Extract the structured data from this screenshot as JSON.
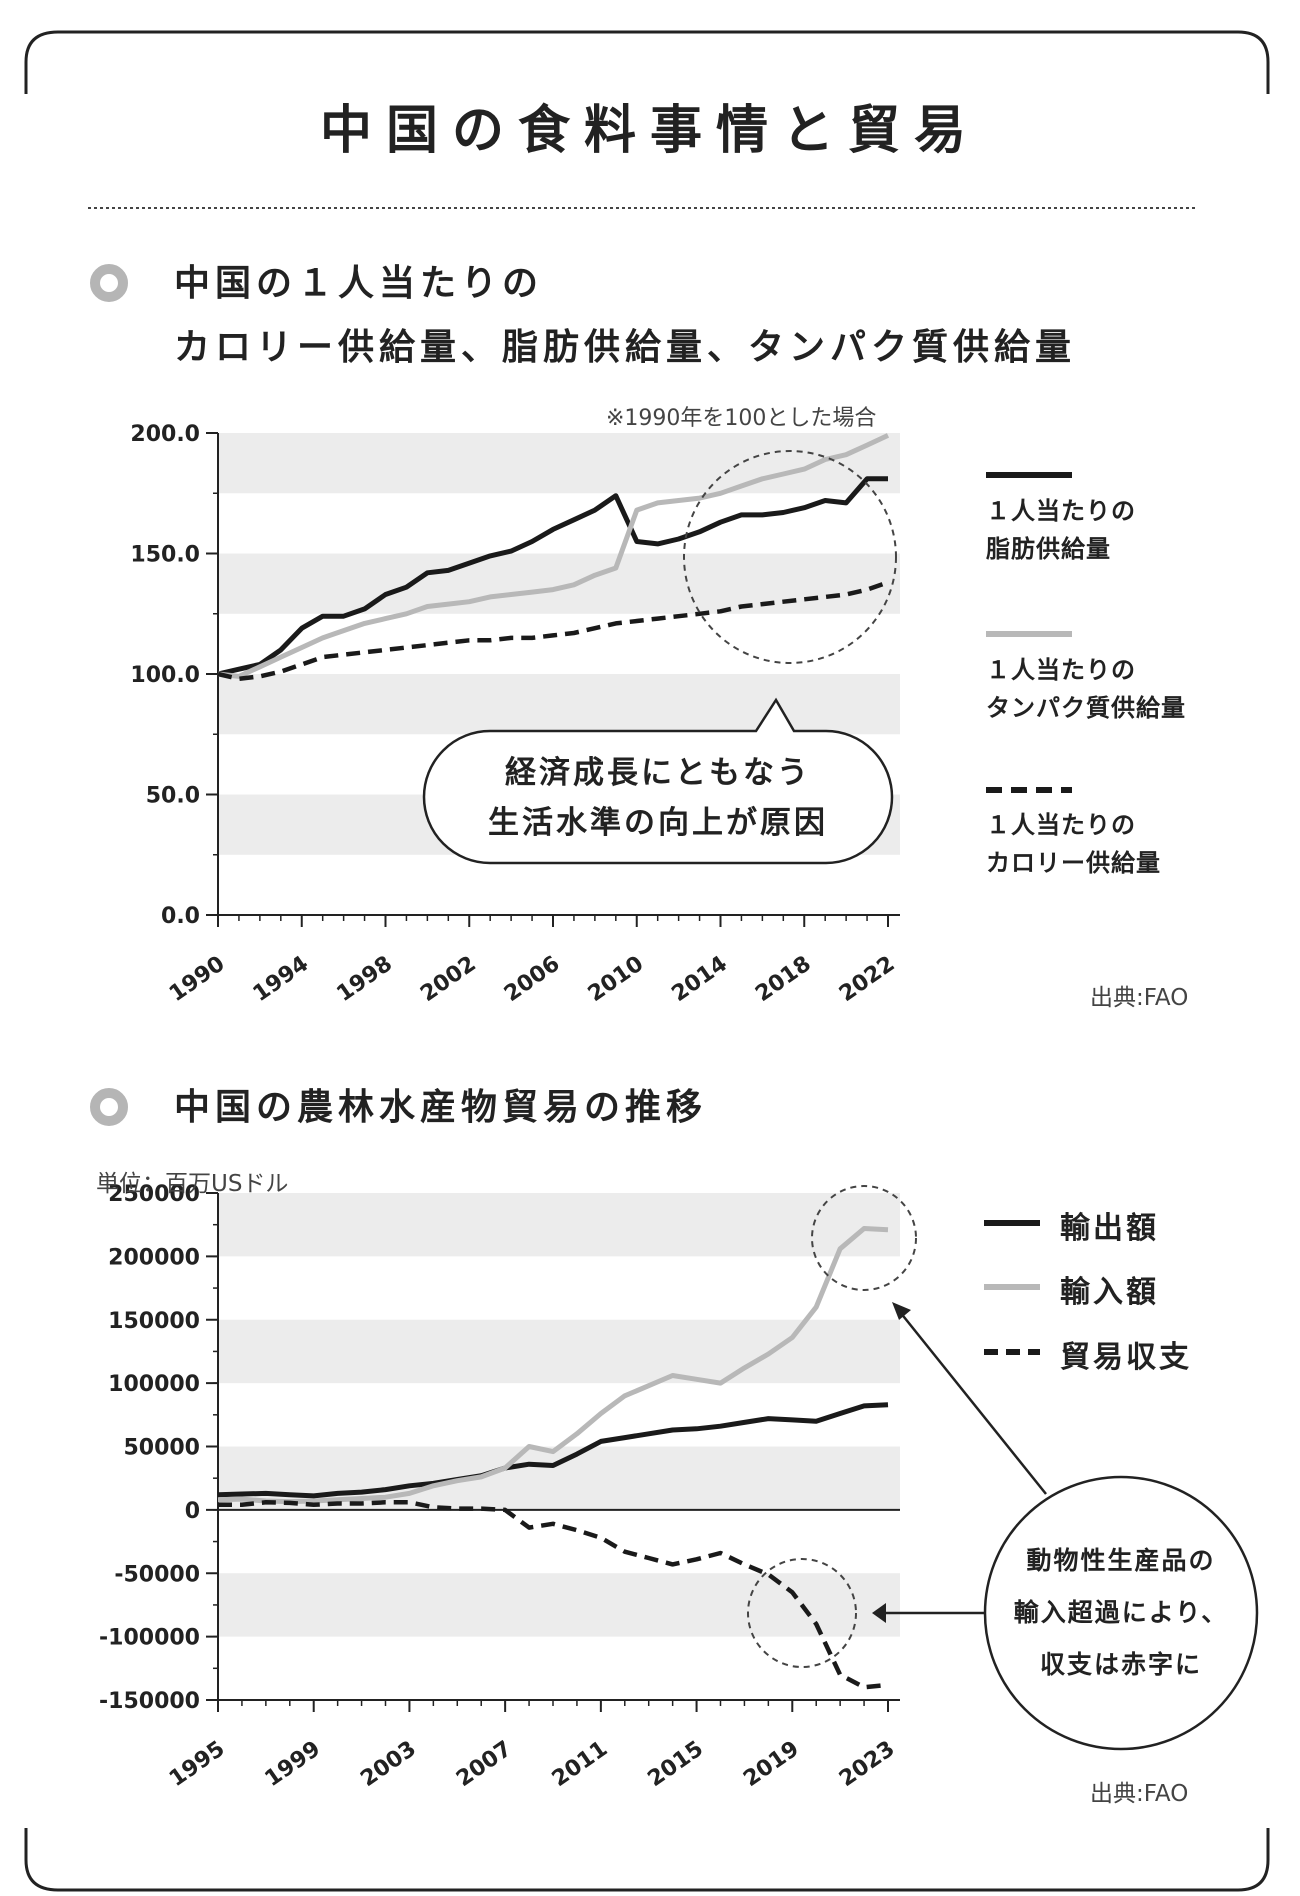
{
  "page": {
    "title": "中国の食料事情と貿易"
  },
  "section1": {
    "title_line1": "中国の１人当たりの",
    "title_line2": "カロリー供給量、脂肪供給量、タンパク質供給量",
    "note": "※1990年を100とした場合",
    "source": "出典:FAO",
    "callout_line1": "経済成長にともなう",
    "callout_line2": "生活水準の向上が原因",
    "legend": [
      {
        "line1": "１人当たりの",
        "line2": "脂肪供給量",
        "style": "solid-black"
      },
      {
        "line1": "１人当たりの",
        "line2": "タンパク質供給量",
        "style": "solid-gray"
      },
      {
        "line1": "１人当たりの",
        "line2": "カロリー供給量",
        "style": "dashed-black"
      }
    ]
  },
  "section2": {
    "title": "中国の農林水産物貿易の推移",
    "unit": "単位：百万USドル",
    "source": "出典:FAO",
    "legend": [
      {
        "label": "輸出額",
        "style": "solid-black"
      },
      {
        "label": "輸入額",
        "style": "solid-gray"
      },
      {
        "label": "貿易収支",
        "style": "dashed-black"
      }
    ],
    "circle_line1": "動物性生産品の",
    "circle_line2": "輸入超過により、",
    "circle_line3": "収支は赤字に"
  },
  "colors": {
    "black_line": "#1a1a1a",
    "gray_line": "#b8b8b8",
    "band": "#ececec",
    "text": "#222222"
  },
  "chart_data": [
    {
      "type": "line",
      "title": "中国の１人当たりのカロリー供給量、脂肪供給量、タンパク質供給量",
      "xlabel": "",
      "ylabel": "",
      "x": [
        1990,
        1991,
        1992,
        1993,
        1994,
        1995,
        1996,
        1997,
        1998,
        1999,
        2000,
        2001,
        2002,
        2003,
        2004,
        2005,
        2006,
        2007,
        2008,
        2009,
        2010,
        2011,
        2012,
        2013,
        2014,
        2015,
        2016,
        2017,
        2018,
        2019,
        2020,
        2021,
        2022
      ],
      "x_ticks": [
        "1990",
        "1994",
        "1998",
        "2002",
        "2006",
        "2010",
        "2014",
        "2018",
        "2022"
      ],
      "y_ticks": [
        "0.0",
        "50.0",
        "100.0",
        "150.0",
        "200.0"
      ],
      "ylim": [
        0,
        200
      ],
      "grid": "alternating horizontal bands",
      "series": [
        {
          "name": "１人当たりの脂肪供給量",
          "style": "solid-black",
          "values": [
            100,
            102,
            104,
            110,
            119,
            124,
            124,
            127,
            133,
            136,
            142,
            143,
            146,
            149,
            151,
            155,
            160,
            164,
            168,
            174,
            155,
            154,
            156,
            159,
            163,
            166,
            166,
            167,
            169,
            172,
            171,
            181,
            181
          ]
        },
        {
          "name": "１人当たりのタンパク質供給量",
          "style": "solid-gray",
          "values": [
            100,
            99,
            103,
            107,
            111,
            115,
            118,
            121,
            123,
            125,
            128,
            129,
            130,
            132,
            133,
            134,
            135,
            137,
            141,
            144,
            168,
            171,
            172,
            173,
            175,
            178,
            181,
            183,
            185,
            189,
            191,
            195,
            199
          ]
        },
        {
          "name": "１人当たりのカロリー供給量",
          "style": "dashed-black",
          "values": [
            100,
            98,
            99,
            101,
            104,
            107,
            108,
            109,
            110,
            111,
            112,
            113,
            114,
            114,
            115,
            115,
            116,
            117,
            119,
            121,
            122,
            123,
            124,
            125,
            126,
            128,
            129,
            130,
            131,
            132,
            133,
            135,
            138
          ]
        }
      ]
    },
    {
      "type": "line",
      "title": "中国の農林水産物貿易の推移",
      "xlabel": "",
      "ylabel": "単位：百万USドル",
      "x": [
        1995,
        1996,
        1997,
        1998,
        1999,
        2000,
        2001,
        2002,
        2003,
        2004,
        2005,
        2006,
        2007,
        2008,
        2009,
        2010,
        2011,
        2012,
        2013,
        2014,
        2015,
        2016,
        2017,
        2018,
        2019,
        2020,
        2021,
        2022,
        2023
      ],
      "x_ticks": [
        "1995",
        "1999",
        "2003",
        "2007",
        "2011",
        "2015",
        "2019",
        "2023"
      ],
      "y_ticks": [
        "-150000",
        "-100000",
        "-50000",
        "0",
        "50000",
        "100000",
        "150000",
        "200000",
        "250000"
      ],
      "ylim": [
        -150000,
        250000
      ],
      "grid": "alternating horizontal bands",
      "series": [
        {
          "name": "輸出額",
          "style": "solid-black",
          "values": [
            12000,
            12500,
            13000,
            12000,
            11000,
            13000,
            14000,
            16000,
            19000,
            21000,
            24000,
            27000,
            33000,
            36000,
            35000,
            44000,
            54000,
            57000,
            60000,
            63000,
            64000,
            66000,
            69000,
            72000,
            71000,
            70000,
            76000,
            82000,
            83000
          ]
        },
        {
          "name": "輸入額",
          "style": "solid-gray",
          "values": [
            8000,
            8500,
            7000,
            6500,
            7000,
            8000,
            9000,
            10000,
            13000,
            19000,
            23000,
            26000,
            33000,
            50000,
            46000,
            60000,
            76000,
            90000,
            98000,
            106000,
            103000,
            100000,
            112000,
            123000,
            136000,
            160000,
            206000,
            222000,
            221000
          ]
        },
        {
          "name": "貿易収支",
          "style": "dashed-black",
          "values": [
            4000,
            4000,
            6000,
            5500,
            4000,
            5000,
            5000,
            6000,
            6000,
            2000,
            1000,
            1000,
            0,
            -14000,
            -11000,
            -16000,
            -22000,
            -33000,
            -38000,
            -43000,
            -39000,
            -34000,
            -43000,
            -51000,
            -65000,
            -90000,
            -130000,
            -140000,
            -138000
          ]
        }
      ]
    }
  ]
}
